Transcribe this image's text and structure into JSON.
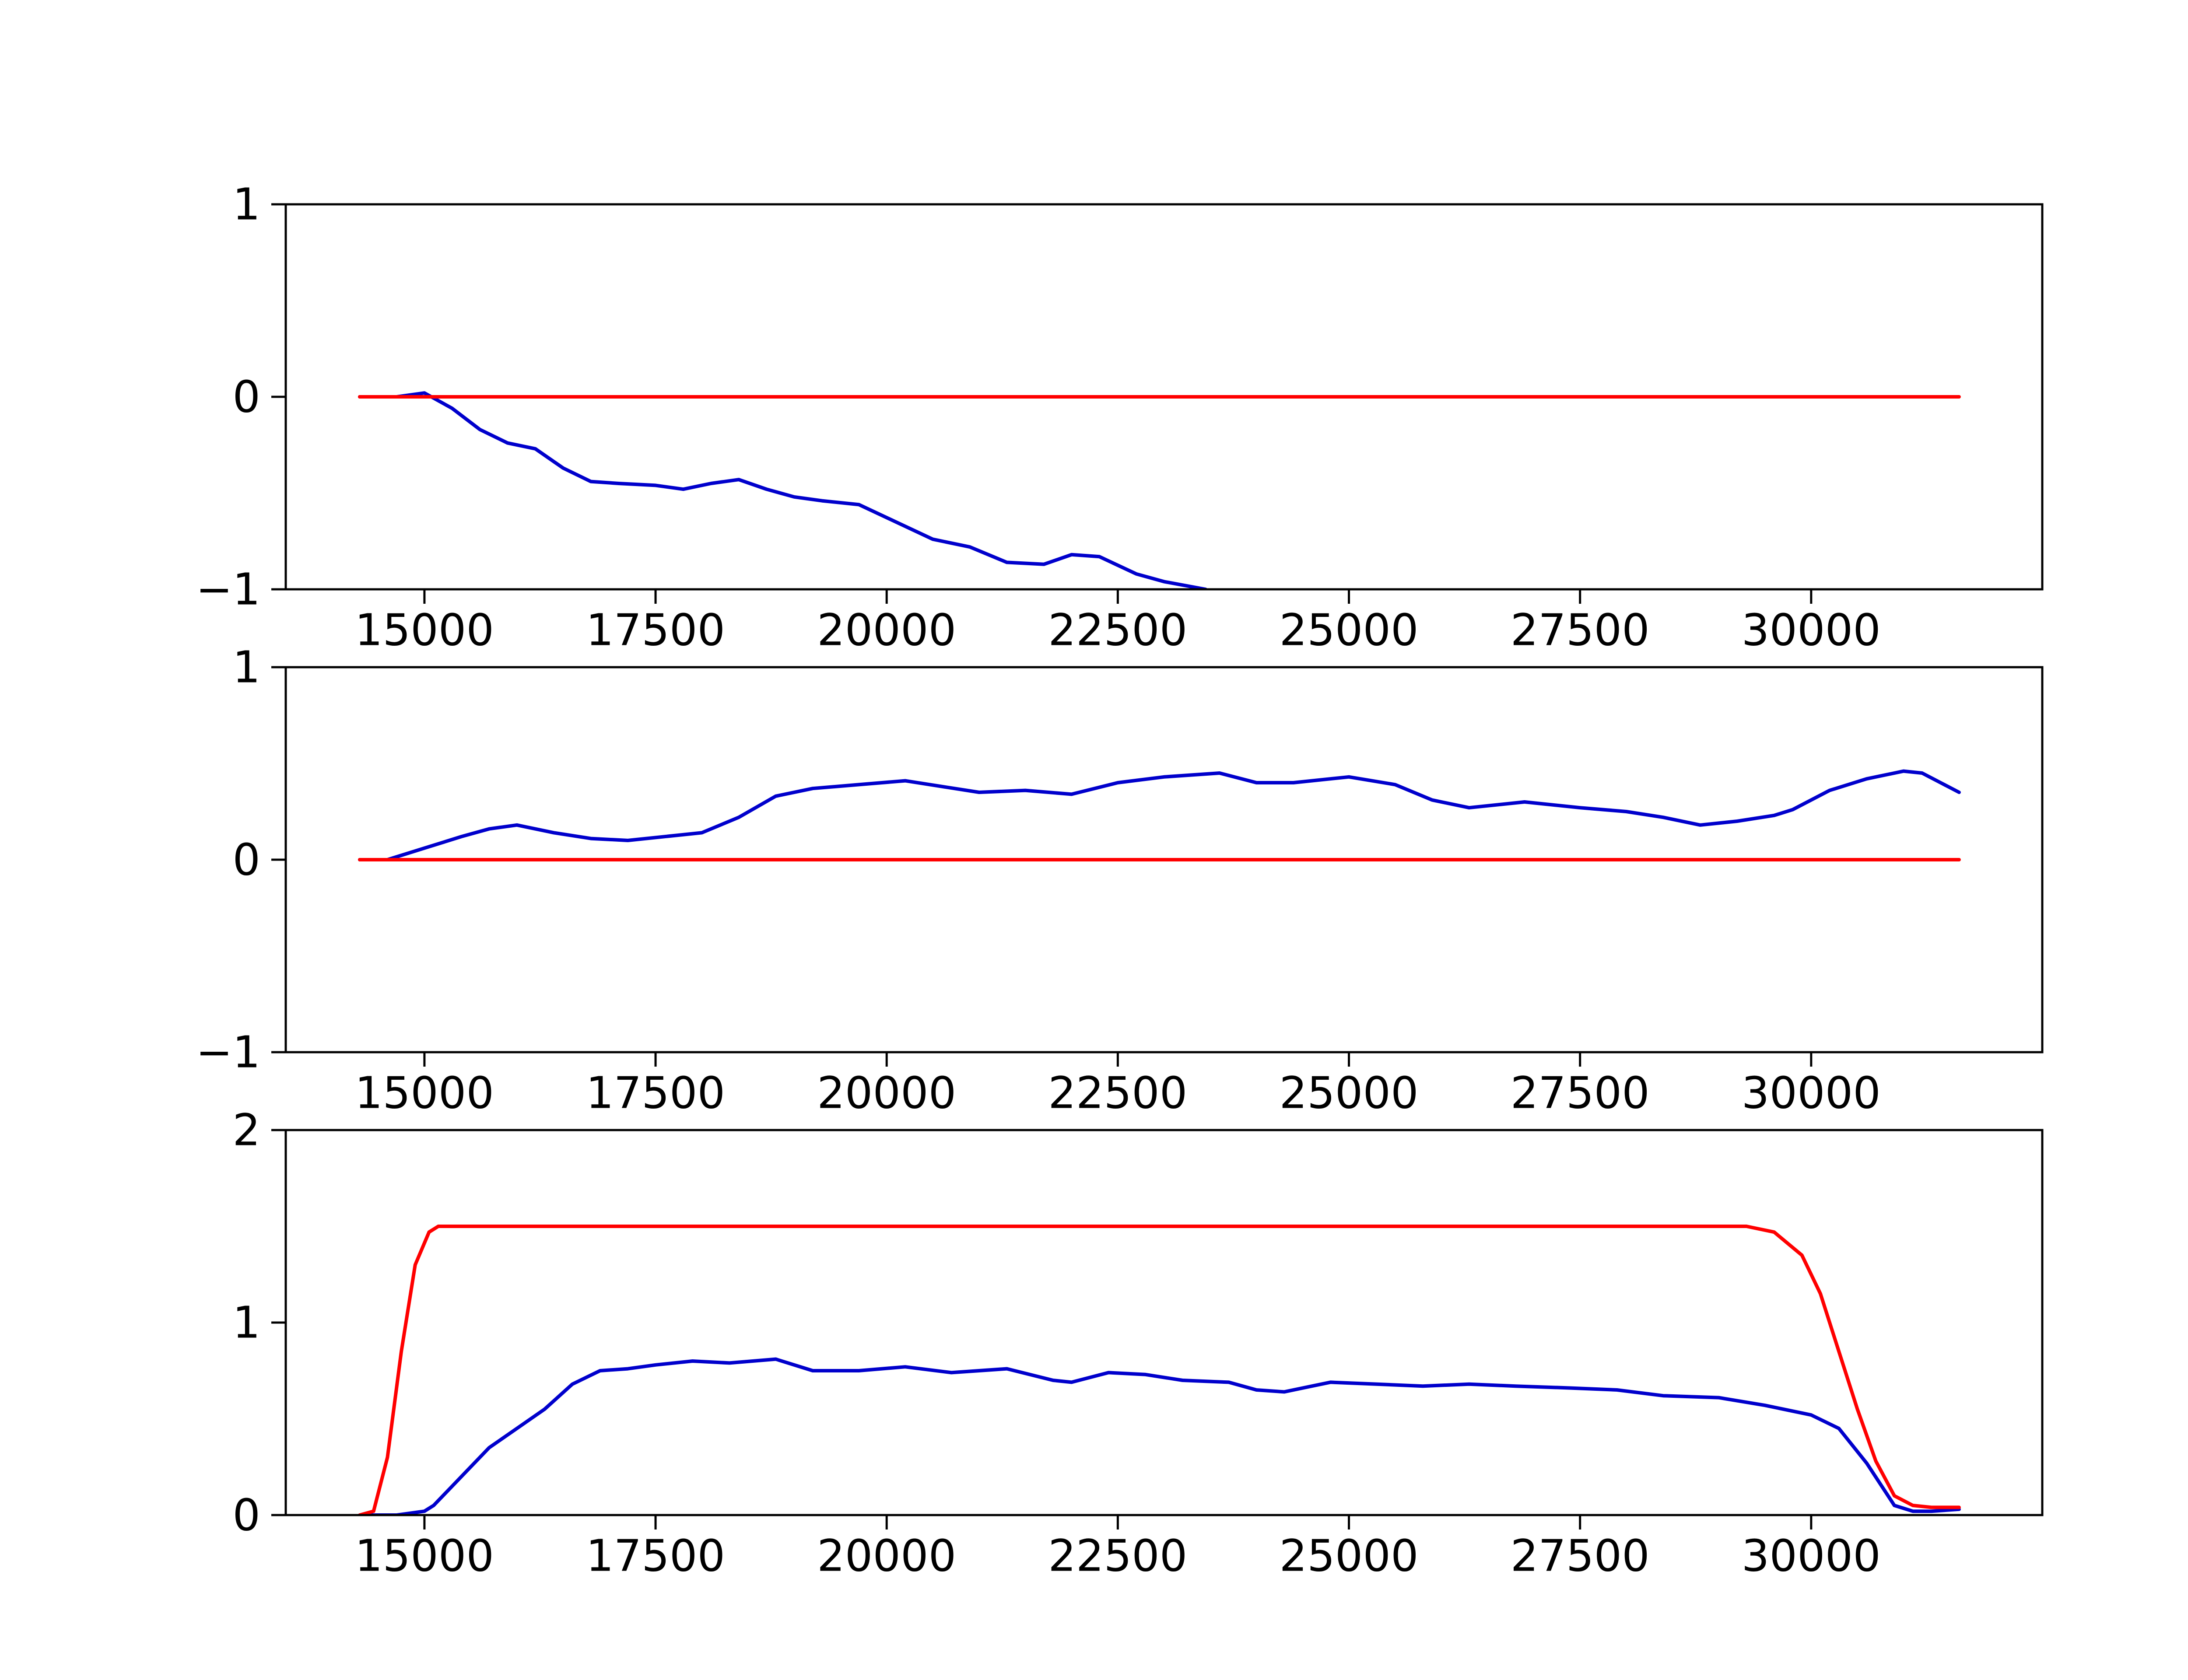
{
  "chart_data": [
    {
      "type": "line",
      "title": "",
      "xlabel": "",
      "ylabel": "",
      "xlim": [
        13500,
        32500
      ],
      "ylim": [
        -1,
        1
      ],
      "xticks": [
        15000,
        17500,
        20000,
        22500,
        25000,
        27500,
        30000
      ],
      "xtick_labels": [
        "15000",
        "17500",
        "20000",
        "22500",
        "25000",
        "27500",
        "30000"
      ],
      "yticks": [
        -1,
        0,
        1
      ],
      "ytick_labels": [
        "−1",
        "0",
        "1"
      ],
      "grid": false,
      "series": [
        {
          "color": "#0000cc",
          "x": [
            14300,
            14700,
            15000,
            15300,
            15600,
            15900,
            16200,
            16500,
            16800,
            17100,
            17500,
            17800,
            18100,
            18400,
            18700,
            19000,
            19300,
            19700,
            20100,
            20500,
            20900,
            21300,
            21700,
            22000,
            22300,
            22700,
            23000,
            23450
          ],
          "y": [
            0.0,
            0.0,
            0.02,
            -0.06,
            -0.17,
            -0.24,
            -0.27,
            -0.37,
            -0.44,
            -0.45,
            -0.46,
            -0.48,
            -0.45,
            -0.43,
            -0.48,
            -0.52,
            -0.54,
            -0.56,
            -0.65,
            -0.74,
            -0.78,
            -0.86,
            -0.87,
            -0.82,
            -0.83,
            -0.92,
            -0.96,
            -1.0
          ]
        },
        {
          "color": "#ff0000",
          "x": [
            14300,
            31600
          ],
          "y": [
            0,
            0
          ]
        }
      ]
    },
    {
      "type": "line",
      "title": "",
      "xlabel": "",
      "ylabel": "",
      "xlim": [
        13500,
        32500
      ],
      "ylim": [
        -1,
        1
      ],
      "xticks": [
        15000,
        17500,
        20000,
        22500,
        25000,
        27500,
        30000
      ],
      "xtick_labels": [
        "15000",
        "17500",
        "20000",
        "22500",
        "25000",
        "27500",
        "30000"
      ],
      "yticks": [
        -1,
        0,
        1
      ],
      "ytick_labels": [
        "−1",
        "0",
        "1"
      ],
      "grid": false,
      "series": [
        {
          "color": "#0000cc",
          "x": [
            14300,
            14600,
            15000,
            15400,
            15700,
            16000,
            16400,
            16800,
            17200,
            17600,
            18000,
            18400,
            18800,
            19200,
            19700,
            20200,
            20600,
            21000,
            21500,
            22000,
            22500,
            23000,
            23600,
            24000,
            24400,
            25000,
            25500,
            25900,
            26300,
            26900,
            27500,
            28000,
            28400,
            28800,
            29200,
            29600,
            29800,
            30200,
            30600,
            31000,
            31200,
            31400,
            31600
          ],
          "y": [
            0.0,
            0.0,
            0.06,
            0.12,
            0.16,
            0.18,
            0.14,
            0.11,
            0.1,
            0.12,
            0.14,
            0.22,
            0.33,
            0.37,
            0.39,
            0.41,
            0.38,
            0.35,
            0.36,
            0.34,
            0.4,
            0.43,
            0.45,
            0.4,
            0.4,
            0.43,
            0.39,
            0.31,
            0.27,
            0.3,
            0.27,
            0.25,
            0.22,
            0.18,
            0.2,
            0.23,
            0.26,
            0.36,
            0.42,
            0.46,
            0.45,
            0.4,
            0.35
          ]
        },
        {
          "color": "#ff0000",
          "x": [
            14300,
            31600
          ],
          "y": [
            0,
            0
          ]
        }
      ]
    },
    {
      "type": "line",
      "title": "",
      "xlabel": "",
      "ylabel": "",
      "xlim": [
        13500,
        32500
      ],
      "ylim": [
        0,
        2
      ],
      "xticks": [
        15000,
        17500,
        20000,
        22500,
        25000,
        27500,
        30000
      ],
      "xtick_labels": [
        "15000",
        "17500",
        "20000",
        "22500",
        "25000",
        "27500",
        "30000"
      ],
      "yticks": [
        0,
        1,
        2
      ],
      "ytick_labels": [
        "0",
        "1",
        "2"
      ],
      "grid": false,
      "series": [
        {
          "color": "#0000cc",
          "x": [
            14300,
            14700,
            15000,
            15100,
            15400,
            15700,
            16000,
            16300,
            16600,
            16900,
            17200,
            17500,
            17900,
            18300,
            18800,
            19200,
            19700,
            20200,
            20700,
            21300,
            21800,
            22000,
            22400,
            22800,
            23200,
            23700,
            24000,
            24300,
            24800,
            25300,
            25800,
            26300,
            26800,
            27400,
            27900,
            28400,
            29000,
            29500,
            30000,
            30300,
            30600,
            30900,
            31100,
            31300,
            31600
          ],
          "y": [
            0.0,
            0.0,
            0.02,
            0.05,
            0.2,
            0.35,
            0.45,
            0.55,
            0.68,
            0.75,
            0.76,
            0.78,
            0.8,
            0.79,
            0.81,
            0.75,
            0.75,
            0.77,
            0.74,
            0.76,
            0.7,
            0.69,
            0.74,
            0.73,
            0.7,
            0.69,
            0.65,
            0.64,
            0.69,
            0.68,
            0.67,
            0.68,
            0.67,
            0.66,
            0.65,
            0.62,
            0.61,
            0.57,
            0.52,
            0.45,
            0.27,
            0.05,
            0.02,
            0.02,
            0.03
          ]
        },
        {
          "color": "#ff0000",
          "x": [
            14300,
            14450,
            14600,
            14750,
            14900,
            15050,
            15150,
            15300,
            29000,
            29300,
            29600,
            29900,
            30100,
            30300,
            30500,
            30700,
            30900,
            31100,
            31300,
            31600
          ],
          "y": [
            0.0,
            0.02,
            0.3,
            0.85,
            1.3,
            1.47,
            1.5,
            1.5,
            1.5,
            1.5,
            1.47,
            1.35,
            1.15,
            0.85,
            0.55,
            0.28,
            0.1,
            0.05,
            0.04,
            0.04
          ]
        }
      ]
    }
  ]
}
